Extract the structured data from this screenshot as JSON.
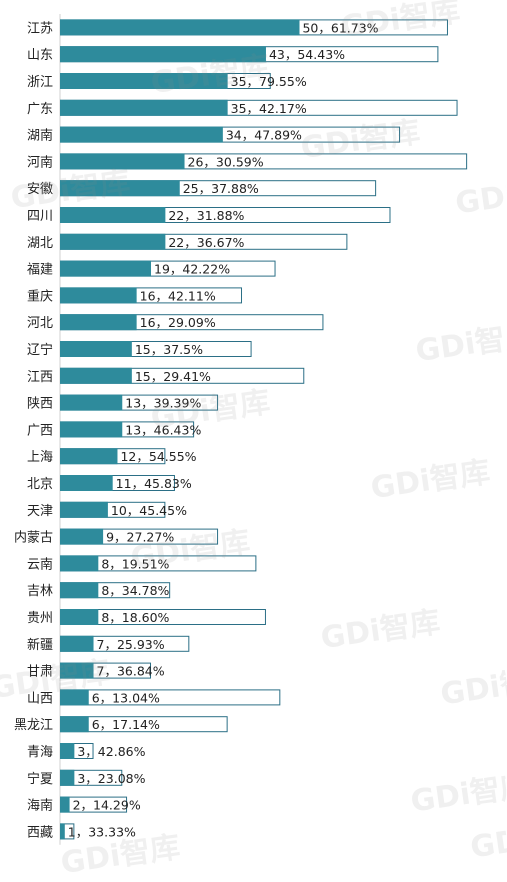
{
  "watermark_text": "GDi智库",
  "colors": {
    "bar_fill": "#2e8b9c",
    "outline": "#2b6f86",
    "text": "#222222"
  },
  "chart_data": {
    "type": "bar",
    "orientation": "horizontal",
    "categories": [
      "江苏",
      "山东",
      "浙江",
      "广东",
      "湖南",
      "河南",
      "安徽",
      "四川",
      "湖北",
      "福建",
      "重庆",
      "河北",
      "辽宁",
      "江西",
      "陕西",
      "广西",
      "上海",
      "北京",
      "天津",
      "内蒙古",
      "云南",
      "吉林",
      "贵州",
      "新疆",
      "甘肃",
      "山西",
      "黑龙江",
      "青海",
      "宁夏",
      "海南",
      "西藏"
    ],
    "series": [
      {
        "values": [
          50,
          43,
          35,
          35,
          34,
          26,
          25,
          22,
          22,
          19,
          16,
          16,
          15,
          15,
          13,
          13,
          12,
          11,
          10,
          9,
          8,
          8,
          8,
          7,
          7,
          6,
          6,
          3,
          3,
          2,
          1
        ]
      },
      {
        "values": [
          81,
          79,
          44,
          83,
          71,
          85,
          66,
          69,
          60,
          45,
          38,
          55,
          40,
          51,
          33,
          28,
          22,
          24,
          22,
          33,
          41,
          23,
          43,
          27,
          19,
          46,
          35,
          7,
          13,
          14,
          3
        ]
      }
    ],
    "data_labels": [
      "50，61.73%",
      "43，54.43%",
      "35，79.55%",
      "35，42.17%",
      "34，47.89%",
      "26，30.59%",
      "25，37.88%",
      "22，31.88%",
      "22，36.67%",
      "19，42.22%",
      "16，42.11%",
      "16，29.09%",
      "15，37.5%",
      "15，29.41%",
      "13，39.39%",
      "13，46.43%",
      "12，54.55%",
      "11，45.83%",
      "10，45.45%",
      "9，27.27%",
      "8，19.51%",
      "8，34.78%",
      "8，18.60%",
      "7，25.93%",
      "7，36.84%",
      "6，13.04%",
      "6，17.14%",
      "3，42.86%",
      "3，23.08%",
      "2，14.29%",
      "1，33.33%"
    ],
    "xlim": [
      0,
      85.6
    ],
    "grid": false,
    "legend": "none"
  }
}
